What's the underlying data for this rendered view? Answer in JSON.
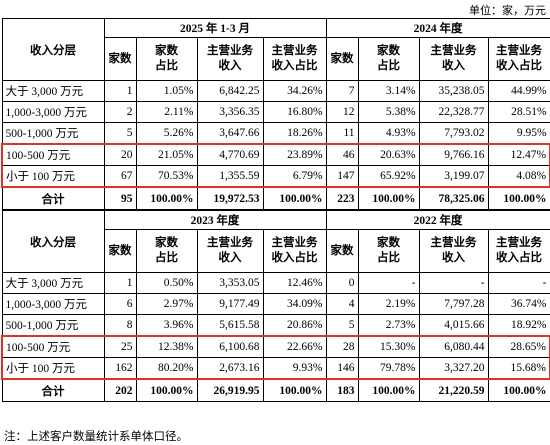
{
  "unit": "单位：家，万元",
  "tables": [
    {
      "row_header": "收入分层",
      "periods": [
        {
          "title": "2025 年 1-3 月",
          "columns": [
            [
              "家数"
            ],
            [
              "家数",
              "占比"
            ],
            [
              "主营业务",
              "收入"
            ],
            [
              "主营业务",
              "收入占比"
            ]
          ]
        },
        {
          "title": "2024 年度",
          "columns": [
            [
              "家数"
            ],
            [
              "家数",
              "占比"
            ],
            [
              "主营业务",
              "收入"
            ],
            [
              "主营业务",
              "收入占比"
            ]
          ]
        }
      ],
      "rows": [
        [
          "大于 3,000 万元",
          "1",
          "1.05%",
          "6,842.25",
          "34.26%",
          "7",
          "3.14%",
          "35,238.05",
          "44.99%"
        ],
        [
          "1,000-3,000 万元",
          "2",
          "2.11%",
          "3,356.35",
          "16.80%",
          "12",
          "5.38%",
          "22,328.77",
          "28.51%"
        ],
        [
          "500-1,000 万元",
          "5",
          "5.26%",
          "3,647.66",
          "18.26%",
          "11",
          "4.93%",
          "7,793.02",
          "9.95%"
        ],
        [
          "100-500 万元",
          "20",
          "21.05%",
          "4,770.69",
          "23.89%",
          "46",
          "20.63%",
          "9,766.16",
          "12.47%"
        ],
        [
          "小于 100 万元",
          "67",
          "70.53%",
          "1,355.59",
          "6.79%",
          "147",
          "65.92%",
          "3,199.07",
          "4.08%"
        ]
      ],
      "total": [
        "合计",
        "95",
        "100.00%",
        "19,972.53",
        "100.00%",
        "223",
        "100.00%",
        "78,325.06",
        "100.00%"
      ]
    },
    {
      "row_header": "收入分层",
      "periods": [
        {
          "title": "2023 年度",
          "columns": [
            [
              "家数"
            ],
            [
              "家数",
              "占比"
            ],
            [
              "主营业务",
              "收入"
            ],
            [
              "主营业务",
              "收入占比"
            ]
          ]
        },
        {
          "title": "2022 年度",
          "columns": [
            [
              "家数"
            ],
            [
              "家数",
              "占比"
            ],
            [
              "主营业务",
              "收入"
            ],
            [
              "主营业务",
              "收入占比"
            ]
          ]
        }
      ],
      "rows": [
        [
          "大于 3,000 万元",
          "1",
          "0.50%",
          "3,353.05",
          "12.46%",
          "0",
          "-",
          "-",
          "-"
        ],
        [
          "1,000-3,000 万元",
          "6",
          "2.97%",
          "9,177.49",
          "34.09%",
          "4",
          "2.19%",
          "7,797.28",
          "36.74%"
        ],
        [
          "500-1,000 万元",
          "8",
          "3.96%",
          "5,615.58",
          "20.86%",
          "5",
          "2.73%",
          "4,015.66",
          "18.92%"
        ],
        [
          "100-500 万元",
          "25",
          "12.38%",
          "6,100.68",
          "22.66%",
          "28",
          "15.30%",
          "6,080.44",
          "28.65%"
        ],
        [
          "小于 100 万元",
          "162",
          "80.20%",
          "2,673.16",
          "9.93%",
          "146",
          "79.78%",
          "3,327.20",
          "15.68%"
        ]
      ],
      "total": [
        "合计",
        "202",
        "100.00%",
        "26,919.95",
        "100.00%",
        "183",
        "100.00%",
        "21,220.59",
        "100.00%"
      ]
    }
  ],
  "note": "注：上述客户数量统计系单体口径。"
}
